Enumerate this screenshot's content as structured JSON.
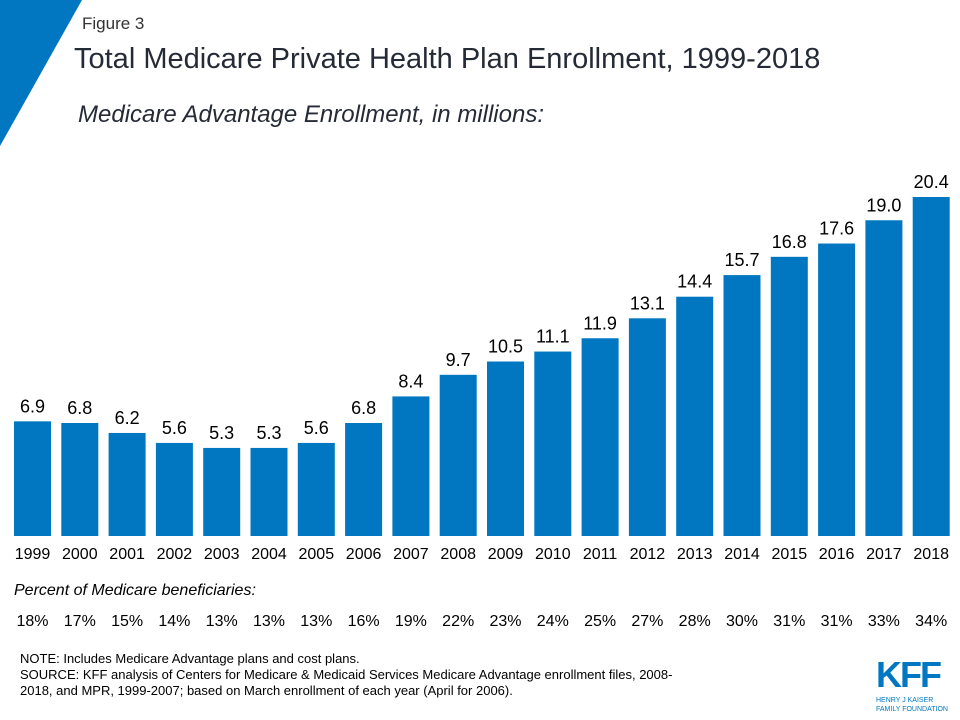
{
  "header": {
    "figure_label": "Figure 3",
    "title": "Total Medicare Private Health Plan Enrollment, 1999-2018",
    "subtitle": "Medicare Advantage Enrollment, in millions:"
  },
  "chart_data": {
    "type": "bar",
    "title": "Total Medicare Private Health Plan Enrollment, 1999-2018",
    "ylabel": "Medicare Advantage Enrollment, in millions:",
    "categories": [
      "1999",
      "2000",
      "2001",
      "2002",
      "2003",
      "2004",
      "2005",
      "2006",
      "2007",
      "2008",
      "2009",
      "2010",
      "2011",
      "2012",
      "2013",
      "2014",
      "2015",
      "2016",
      "2017",
      "2018"
    ],
    "values": [
      6.9,
      6.8,
      6.2,
      5.6,
      5.3,
      5.3,
      5.6,
      6.8,
      8.4,
      9.7,
      10.5,
      11.1,
      11.9,
      13.1,
      14.4,
      15.7,
      16.8,
      17.6,
      19.0,
      20.4
    ],
    "labels": [
      "6.9",
      "6.8",
      "6.2",
      "5.6",
      "5.3",
      "5.3",
      "5.6",
      "6.8",
      "8.4",
      "9.7",
      "10.5",
      "11.1",
      "11.9",
      "13.1",
      "14.4",
      "15.7",
      "16.8",
      "17.6",
      "19.0",
      "20.4"
    ],
    "ylim": [
      0,
      20.4
    ],
    "grid": false,
    "bar_color": "#0077c0",
    "percent_label": "Percent of Medicare beneficiaries:",
    "percents": [
      "18%",
      "17%",
      "15%",
      "14%",
      "13%",
      "13%",
      "13%",
      "16%",
      "19%",
      "22%",
      "23%",
      "24%",
      "25%",
      "27%",
      "28%",
      "30%",
      "31%",
      "31%",
      "33%",
      "34%"
    ]
  },
  "notes": {
    "note": "NOTE:  Includes Medicare Advantage plans and cost plans.",
    "source1": "SOURCE:  KFF analysis of Centers for Medicare & Medicaid Services Medicare Advantage enrollment files, 2008-",
    "source2": "2018, and MPR, 1999-2007; based on March enrollment of each year (April for 2006)."
  },
  "logo": {
    "text": "KFF",
    "line1": "HENRY J KAISER",
    "line2": "FAMILY FOUNDATION",
    "color": "#0077c0"
  }
}
